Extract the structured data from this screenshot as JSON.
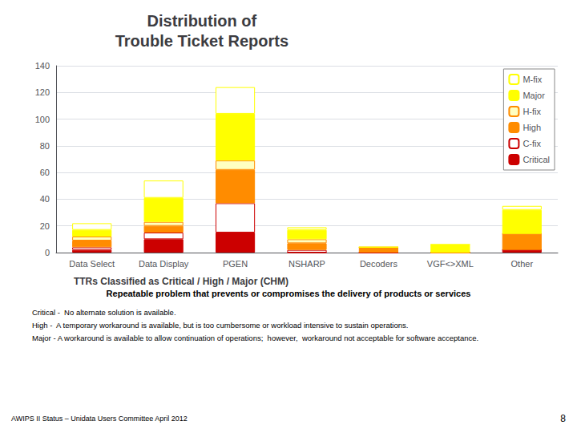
{
  "chart_data": {
    "type": "bar",
    "title": "Distribution of\nTrouble Ticket Reports",
    "subtitle": "TTRs Classified as Critical / High / Major (CHM)",
    "categories": [
      "Data Select",
      "Data Display",
      "PGEN",
      "NSHARP",
      "Decoders",
      "VGF<>XML",
      "Other"
    ],
    "series": [
      {
        "name": "Critical",
        "color": "#cc0000",
        "values": [
          2,
          10,
          15,
          0,
          0,
          0,
          2
        ]
      },
      {
        "name": "C-fix",
        "color": "#ffffff",
        "values": [
          2,
          5,
          22,
          2,
          0,
          0,
          0
        ]
      },
      {
        "name": "High",
        "color": "#ff8c00",
        "values": [
          5,
          5,
          25,
          5,
          4,
          0,
          12
        ]
      },
      {
        "name": "H-fix",
        "color": "#ffffc0",
        "values": [
          3,
          3,
          7,
          3,
          0,
          0,
          0
        ]
      },
      {
        "name": "Major",
        "color": "#ffff00",
        "values": [
          5,
          18,
          35,
          7,
          0,
          6,
          18
        ]
      },
      {
        "name": "M-fix",
        "color": "#ffffff",
        "values": [
          5,
          13,
          20,
          2,
          0,
          0,
          3
        ]
      }
    ],
    "stacked": true,
    "ylim": [
      0,
      140
    ],
    "yticks": [
      0,
      20,
      40,
      60,
      80,
      100,
      120,
      140
    ],
    "grid": true,
    "legend": "upper right",
    "annotations": [
      "Repeatable problem that prevents or compromises the delivery of products or services",
      "Critical -  No alternate solution is available.",
      "High -  A temporary workaround is available, but is too cumbersome or workload intensive to sustain operations.",
      "Major - A workaround is available to allow continuation of operations;  however,  workaround not acceptable for software acceptance.",
      "AWIPS II Status – Unidata Users Committee April 2012",
      "8"
    ]
  }
}
